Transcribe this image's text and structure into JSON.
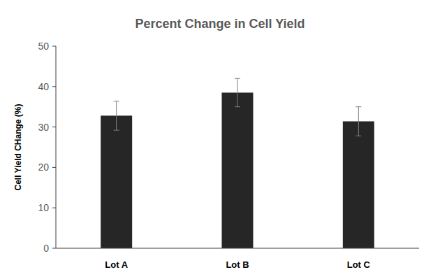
{
  "chart_data": {
    "type": "bar",
    "title": "Percent Change in Cell Yield",
    "y_label": "Cell Yield CHange (%)",
    "categories": [
      "Lot A",
      "Lot B",
      "Lot C"
    ],
    "values": [
      32.8,
      38.5,
      31.4
    ],
    "errors": [
      3.6,
      3.5,
      3.6
    ],
    "color": "#262626",
    "ylim": [
      0,
      50
    ],
    "yticks": [
      0,
      10,
      20,
      30,
      40,
      50
    ],
    "grid": false
  }
}
